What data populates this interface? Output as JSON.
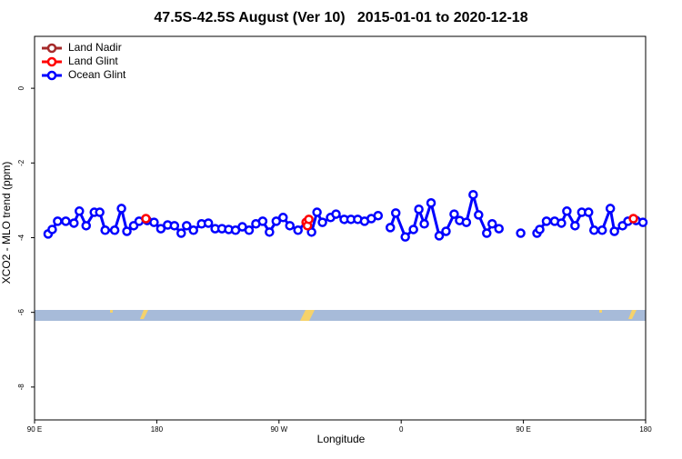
{
  "chart_data": {
    "type": "line",
    "title": "47.5S-42.5S August (Ver 10)   2015-01-01 to 2020-12-18",
    "xlabel": "Longitude",
    "ylabel": "XCO2 - MLO trend (ppm)",
    "xlim": [
      90,
      540
    ],
    "ylim": [
      -8.88,
      1.39
    ],
    "xticks": [
      {
        "value": 90,
        "label": "90 E"
      },
      180,
      {
        "value": 270,
        "label": "90 W"
      },
      {
        "value": 360,
        "label": "0"
      },
      {
        "value": 450,
        "label": "90 E"
      },
      {
        "value": 540,
        "label": "180"
      }
    ],
    "yticks": [
      0,
      -2,
      -4,
      -6,
      -8
    ],
    "legend": "top-left",
    "series": [
      {
        "name": "Land Nadir",
        "color": "#a52a2a",
        "x": [],
        "values": []
      },
      {
        "name": "Land Glint",
        "color": "#ff0000",
        "x": [
          172,
          231,
          290,
          291,
          292,
          411,
          531
        ],
        "values": [
          -3.49,
          null,
          -3.59,
          -3.68,
          -3.51,
          null,
          -3.49
        ]
      },
      {
        "name": "Ocean Glint",
        "color": "#0000ff",
        "x": [
          100,
          103,
          107,
          113,
          119,
          123,
          128,
          134,
          138,
          142,
          149,
          154,
          158,
          163,
          167,
          173,
          178,
          183,
          188,
          193,
          198,
          202,
          207,
          213,
          218,
          223,
          228,
          233,
          238,
          243,
          248,
          253,
          258,
          263,
          268,
          273,
          278,
          284,
          290,
          294,
          298,
          302,
          308,
          312,
          318,
          323,
          328,
          333,
          338,
          343,
          347,
          352,
          356,
          363,
          369,
          373,
          377,
          382,
          388,
          393,
          399,
          403,
          408,
          413,
          417,
          423,
          427,
          432,
          440,
          448,
          454,
          460,
          462,
          467,
          473,
          478,
          482,
          488,
          493,
          498,
          502,
          508,
          514,
          517,
          523,
          527,
          533,
          538
        ],
        "values": [
          -3.9,
          -3.78,
          -3.56,
          -3.56,
          -3.61,
          -3.29,
          -3.68,
          -3.32,
          -3.32,
          -3.8,
          -3.8,
          -3.22,
          -3.83,
          -3.68,
          -3.56,
          -3.54,
          -3.59,
          -3.76,
          -3.66,
          -3.68,
          -3.88,
          -3.68,
          -3.8,
          -3.63,
          -3.61,
          -3.76,
          -3.76,
          -3.78,
          -3.8,
          -3.71,
          -3.8,
          -3.63,
          -3.56,
          -3.85,
          -3.56,
          -3.46,
          -3.68,
          -3.8,
          -3.59,
          -3.85,
          -3.32,
          -3.59,
          -3.46,
          -3.37,
          -3.51,
          -3.51,
          -3.51,
          -3.56,
          -3.49,
          -3.41,
          null,
          -3.73,
          -3.34,
          -3.98,
          -3.78,
          -3.24,
          -3.63,
          -3.07,
          -3.95,
          -3.83,
          -3.37,
          -3.54,
          -3.59,
          -2.85,
          -3.39,
          -3.88,
          -3.63,
          -3.76,
          null,
          -3.88,
          null,
          -3.88,
          -3.78,
          -3.56,
          -3.56,
          -3.61,
          -3.29,
          -3.68,
          -3.32,
          -3.32,
          -3.8,
          -3.8,
          -3.22,
          -3.83,
          -3.68,
          -3.56,
          -3.54,
          -3.59
        ]
      }
    ]
  }
}
